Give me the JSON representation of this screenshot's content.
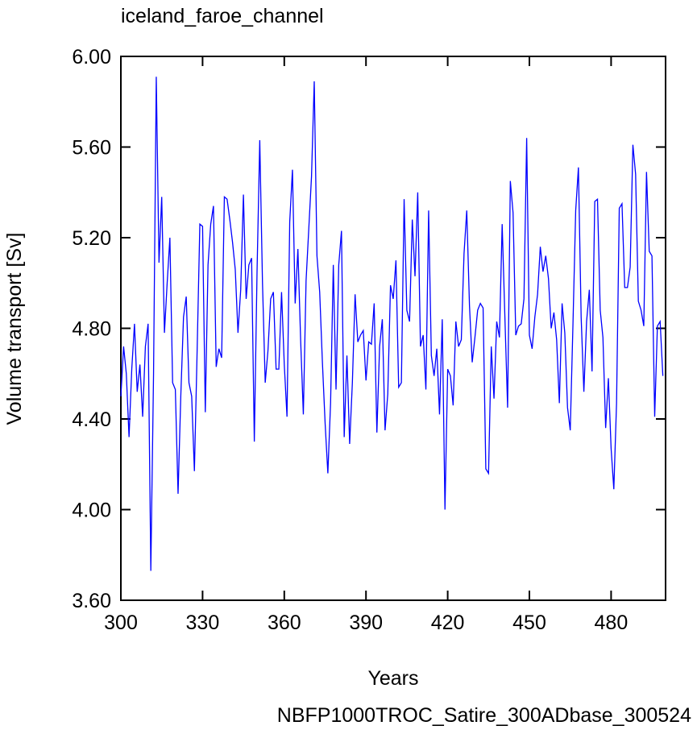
{
  "chart_data": {
    "type": "line",
    "title": "iceland_faroe_channel",
    "xlabel": "Years",
    "ylabel": "Volume transport [Sv]",
    "annotation": "NBFP1000TROC_Satire_300ADbase_300524",
    "annotation_color": "#0000ff",
    "xlim": [
      300,
      500
    ],
    "ylim": [
      3.6,
      6.0
    ],
    "xticks": [
      300,
      330,
      360,
      390,
      420,
      450,
      480
    ],
    "yticks": [
      {
        "value": 3.6,
        "label": "3.60"
      },
      {
        "value": 4.0,
        "label": "4.00"
      },
      {
        "value": 4.4,
        "label": "4.40"
      },
      {
        "value": 4.8,
        "label": "4.80"
      },
      {
        "value": 5.2,
        "label": "5.20"
      },
      {
        "value": 5.6,
        "label": "5.60"
      },
      {
        "value": 6.0,
        "label": "6.00"
      }
    ],
    "x": [
      300,
      301,
      302,
      303,
      304,
      305,
      306,
      307,
      308,
      309,
      310,
      311,
      312,
      313,
      314,
      315,
      316,
      317,
      318,
      319,
      320,
      321,
      322,
      323,
      324,
      325,
      326,
      327,
      328,
      329,
      330,
      331,
      332,
      333,
      334,
      335,
      336,
      337,
      338,
      339,
      340,
      341,
      342,
      343,
      344,
      345,
      346,
      347,
      348,
      349,
      350,
      351,
      352,
      353,
      354,
      355,
      356,
      357,
      358,
      359,
      360,
      361,
      362,
      363,
      364,
      365,
      366,
      367,
      368,
      369,
      370,
      371,
      372,
      373,
      374,
      375,
      376,
      377,
      378,
      379,
      380,
      381,
      382,
      383,
      384,
      385,
      386,
      387,
      388,
      389,
      390,
      391,
      392,
      393,
      394,
      395,
      396,
      397,
      398,
      399,
      400,
      401,
      402,
      403,
      404,
      405,
      406,
      407,
      408,
      409,
      410,
      411,
      412,
      413,
      414,
      415,
      416,
      417,
      418,
      419,
      420,
      421,
      422,
      423,
      424,
      425,
      426,
      427,
      428,
      429,
      430,
      431,
      432,
      433,
      434,
      435,
      436,
      437,
      438,
      439,
      440,
      441,
      442,
      443,
      444,
      445,
      446,
      447,
      448,
      449,
      450,
      451,
      452,
      453,
      454,
      455,
      456,
      457,
      458,
      459,
      460,
      461,
      462,
      463,
      464,
      465,
      466,
      467,
      468,
      469,
      470,
      471,
      472,
      473,
      474,
      475,
      476,
      477,
      478,
      479,
      480,
      481,
      482,
      483,
      484,
      485,
      486,
      487,
      488,
      489,
      490,
      491,
      492,
      493,
      494,
      495,
      496,
      497,
      498,
      499
    ],
    "series": [
      {
        "color": "#0000ff",
        "values": [
          4.5,
          4.72,
          4.6,
          4.32,
          4.62,
          4.82,
          4.52,
          4.64,
          4.41,
          4.72,
          4.82,
          3.73,
          4.6,
          5.91,
          5.09,
          5.38,
          4.78,
          5.0,
          5.2,
          4.56,
          4.53,
          4.07,
          4.5,
          4.85,
          4.94,
          4.56,
          4.5,
          4.17,
          4.7,
          5.26,
          5.25,
          4.43,
          5.08,
          5.26,
          5.34,
          4.63,
          4.71,
          4.67,
          5.38,
          5.37,
          5.28,
          5.18,
          5.06,
          4.78,
          4.97,
          5.39,
          4.93,
          5.08,
          5.11,
          4.3,
          5.05,
          5.63,
          5.0,
          4.56,
          4.7,
          4.93,
          4.96,
          4.62,
          4.62,
          4.96,
          4.64,
          4.41,
          5.27,
          5.5,
          4.91,
          5.15,
          4.75,
          4.42,
          5.01,
          5.24,
          5.47,
          5.89,
          5.12,
          4.96,
          4.65,
          4.38,
          4.16,
          4.47,
          5.08,
          4.53,
          5.08,
          5.23,
          4.32,
          4.68,
          4.29,
          4.56,
          4.95,
          4.74,
          4.77,
          4.79,
          4.57,
          4.74,
          4.73,
          4.91,
          4.34,
          4.72,
          4.84,
          4.35,
          4.51,
          4.99,
          4.93,
          5.1,
          4.54,
          4.56,
          5.37,
          4.88,
          4.83,
          5.28,
          5.03,
          5.4,
          4.72,
          4.77,
          4.53,
          5.32,
          4.68,
          4.59,
          4.71,
          4.42,
          4.84,
          4.0,
          4.62,
          4.59,
          4.46,
          4.83,
          4.72,
          4.75,
          5.13,
          5.32,
          4.9,
          4.65,
          4.76,
          4.88,
          4.91,
          4.89,
          4.18,
          4.16,
          4.72,
          4.49,
          4.83,
          4.76,
          5.26,
          4.85,
          4.45,
          5.45,
          5.31,
          4.77,
          4.81,
          4.82,
          4.93,
          5.64,
          4.77,
          4.71,
          4.85,
          4.95,
          5.16,
          5.05,
          5.12,
          5.02,
          4.8,
          4.87,
          4.75,
          4.47,
          4.91,
          4.78,
          4.45,
          4.35,
          4.82,
          5.32,
          5.51,
          4.85,
          4.52,
          4.83,
          4.97,
          4.61,
          5.36,
          5.37,
          4.88,
          4.76,
          4.36,
          4.58,
          4.27,
          4.09,
          4.47,
          5.33,
          5.35,
          4.98,
          4.98,
          5.07,
          5.61,
          5.48,
          4.92,
          4.88,
          4.81,
          5.49,
          5.14,
          5.12,
          4.41,
          4.81,
          4.83,
          4.59
        ]
      }
    ]
  }
}
